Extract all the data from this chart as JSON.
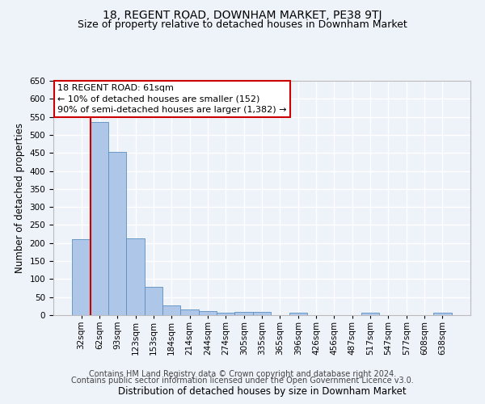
{
  "title": "18, REGENT ROAD, DOWNHAM MARKET, PE38 9TJ",
  "subtitle": "Size of property relative to detached houses in Downham Market",
  "xlabel": "Distribution of detached houses by size in Downham Market",
  "ylabel": "Number of detached properties",
  "categories": [
    "32sqm",
    "62sqm",
    "93sqm",
    "123sqm",
    "153sqm",
    "184sqm",
    "214sqm",
    "244sqm",
    "274sqm",
    "305sqm",
    "335sqm",
    "365sqm",
    "396sqm",
    "426sqm",
    "456sqm",
    "487sqm",
    "517sqm",
    "547sqm",
    "577sqm",
    "608sqm",
    "638sqm"
  ],
  "values": [
    210,
    535,
    452,
    212,
    78,
    27,
    15,
    12,
    7,
    8,
    10,
    0,
    7,
    0,
    0,
    0,
    6,
    0,
    0,
    0,
    6
  ],
  "bar_color": "#aec6e8",
  "bar_edge_color": "#5a8fc0",
  "background_color": "#eef2f9",
  "grid_color": "#ffffff",
  "annotation_text_line1": "18 REGENT ROAD: 61sqm",
  "annotation_text_line2": "← 10% of detached houses are smaller (152)",
  "annotation_text_line3": "90% of semi-detached houses are larger (1,382) →",
  "annotation_box_facecolor": "#ffffff",
  "annotation_box_edgecolor": "#cc0000",
  "vline_color": "#cc0000",
  "vline_x": 0.5,
  "ylim": [
    0,
    650
  ],
  "yticks": [
    0,
    50,
    100,
    150,
    200,
    250,
    300,
    350,
    400,
    450,
    500,
    550,
    600,
    650
  ],
  "footer_line1": "Contains HM Land Registry data © Crown copyright and database right 2024.",
  "footer_line2": "Contains public sector information licensed under the Open Government Licence v3.0.",
  "title_fontsize": 10,
  "subtitle_fontsize": 9,
  "xlabel_fontsize": 8.5,
  "ylabel_fontsize": 8.5,
  "tick_fontsize": 7.5,
  "footer_fontsize": 7,
  "annotation_fontsize": 8
}
